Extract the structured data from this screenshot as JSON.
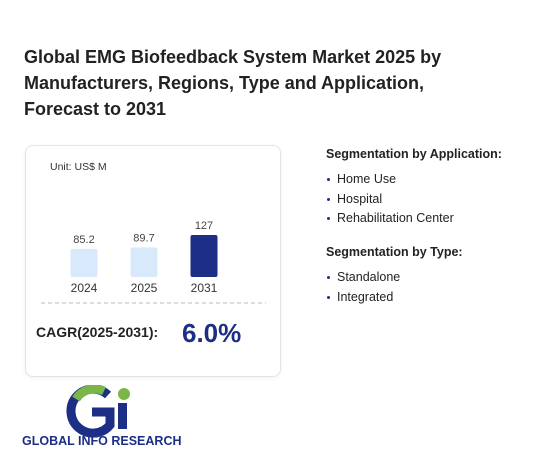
{
  "title": "Global EMG Biofeedback System Market 2025 by Manufacturers, Regions, Type and Application, Forecast to 2031",
  "chart_data": {
    "type": "bar",
    "unit": "Unit: US$ M",
    "categories": [
      "2024",
      "2025",
      "2031"
    ],
    "values": [
      85.2,
      89.7,
      127
    ],
    "colors": [
      "#d8e9fb",
      "#d8e9fb",
      "#1c2e86"
    ]
  },
  "cagr": {
    "label": "CAGR(2025-2031):",
    "value": "6.0%"
  },
  "segmentation": [
    {
      "title": "Segmentation by Application:",
      "items": [
        "Home Use",
        "Hospital",
        "Rehabilitation Center"
      ]
    },
    {
      "title": "Segmentation by Type:",
      "items": [
        "Standalone",
        "Integrated"
      ]
    }
  ],
  "logo": {
    "text": "GLOBAL INFO RESEARCH"
  }
}
